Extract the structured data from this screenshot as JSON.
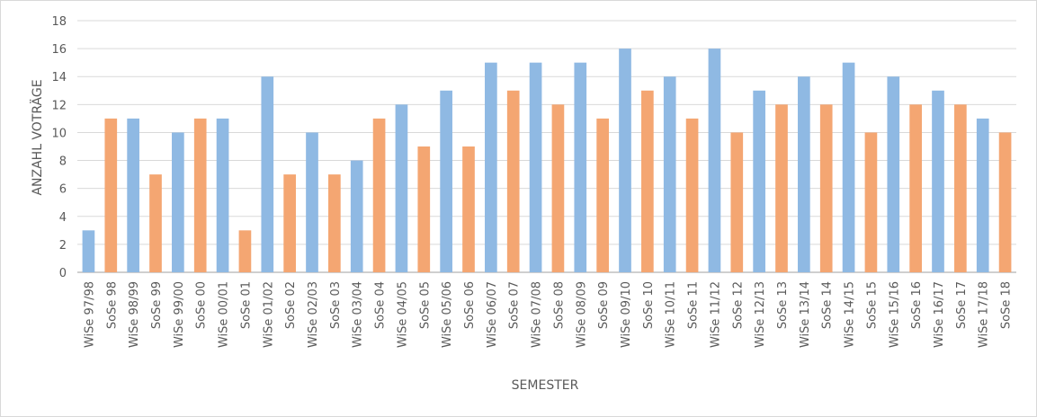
{
  "chart_data": {
    "type": "bar",
    "title": "",
    "xlabel": "SEMESTER",
    "ylabel": "ANZAHL VOTRÄGE",
    "ylim": [
      0,
      18
    ],
    "yticks": [
      0,
      2,
      4,
      6,
      8,
      10,
      12,
      14,
      16,
      18
    ],
    "grid": true,
    "legend": "none",
    "categories": [
      "WiSe 97/98",
      "SoSe 98",
      "WiSe 98/99",
      "SoSe 99",
      "WiSe 99/00",
      "SoSe 00",
      "WiSe 00/01",
      "SoSe 01",
      "WiSe 01/02",
      "SoSe 02",
      "WiSe 02/03",
      "SoSe 03",
      "WiSe 03/04",
      "SoSe 04",
      "WiSe 04/05",
      "SoSe 05",
      "WiSe 05/06",
      "SoSe 06",
      "WiSe 06/07",
      "SoSe 07",
      "WiSe 07/08",
      "SoSe 08",
      "WiSe 08/09",
      "SoSe 09",
      "WiSe 09/10",
      "SoSe 10",
      "WiSe 10/11",
      "SoSe 11",
      "WiSe 11/12",
      "SoSe 12",
      "WiSe 12/13",
      "SoSe 13",
      "WiSe 13/14",
      "SoSe 14",
      "WiSe 14/15",
      "SoSe 15",
      "WiSe 15/16",
      "SoSe 16",
      "WiSe 16/17",
      "SoSe 17",
      "WiSe 17/18",
      "SoSe 18"
    ],
    "values": [
      3,
      11,
      11,
      7,
      10,
      11,
      11,
      3,
      14,
      7,
      10,
      7,
      8,
      11,
      12,
      9,
      13,
      9,
      15,
      13,
      15,
      12,
      15,
      11,
      16,
      13,
      14,
      11,
      16,
      10,
      13,
      12,
      14,
      12,
      15,
      10,
      14,
      12,
      13,
      12,
      11,
      10
    ],
    "colors": {
      "wise": "#8fb9e3",
      "sose": "#f4a672",
      "grid": "#d9d9d9",
      "axis": "#bfbfbf",
      "text": "#595959",
      "frame": "#d9d9d9"
    }
  }
}
